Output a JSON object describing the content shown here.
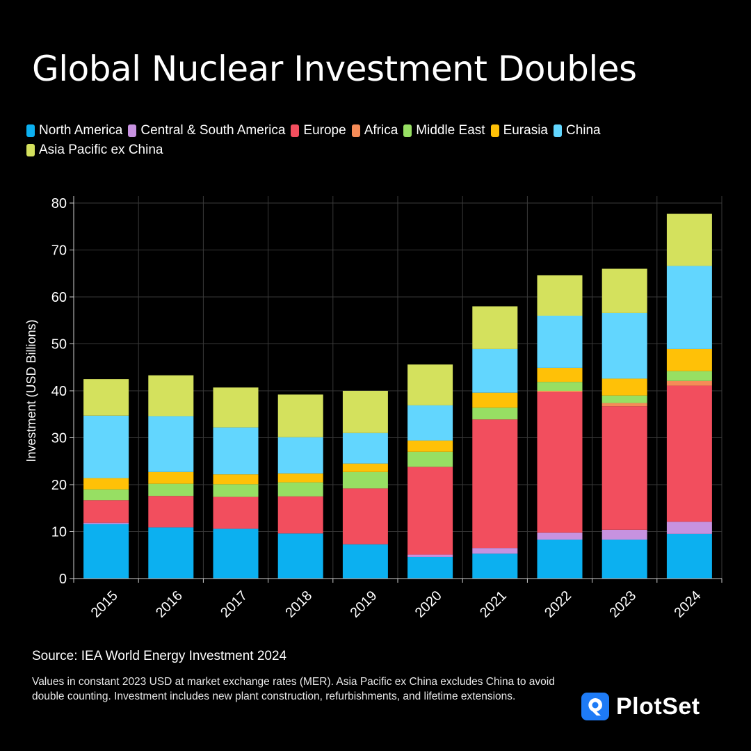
{
  "title": "Global Nuclear Investment Doubles",
  "source": "Source: IEA World Energy Investment 2024",
  "note": "Values in constant 2023 USD at market exchange rates (MER). Asia Pacific ex China excludes China to avoid double counting. Investment includes new plant construction, refurbishments, and lifetime extensions.",
  "brand": {
    "name": "PlotSet",
    "color": "#1e7bf6",
    "icon": "plotset-logo-icon"
  },
  "chart_data": {
    "type": "bar",
    "stacked": true,
    "title": "Global Nuclear Investment Doubles",
    "xlabel": "",
    "ylabel": "Investment (USD Billions)",
    "ylim": [
      0,
      80
    ],
    "yticks": [
      0,
      10,
      20,
      30,
      40,
      50,
      60,
      70,
      80
    ],
    "grid": true,
    "legend_position": "top-left",
    "categories": [
      "2015",
      "2016",
      "2017",
      "2018",
      "2019",
      "2020",
      "2021",
      "2022",
      "2023",
      "2024"
    ],
    "series": [
      {
        "name": "North America",
        "color": "#0cb0f0",
        "values": [
          11.6,
          10.9,
          10.6,
          9.6,
          7.3,
          4.6,
          5.3,
          8.3,
          8.3,
          9.5
        ]
      },
      {
        "name": "Central & South America",
        "color": "#c792e0",
        "values": [
          0.3,
          0.0,
          0.0,
          0.0,
          0.0,
          0.5,
          1.2,
          1.5,
          2.1,
          2.6
        ]
      },
      {
        "name": "Europe",
        "color": "#f24e5e",
        "values": [
          4.8,
          6.7,
          6.8,
          7.9,
          11.9,
          18.7,
          27.4,
          29.9,
          26.3,
          29.0
        ]
      },
      {
        "name": "Africa",
        "color": "#f58b57",
        "values": [
          0.0,
          0.0,
          0.0,
          0.0,
          0.0,
          0.0,
          0.0,
          0.3,
          0.7,
          1.0
        ]
      },
      {
        "name": "Middle East",
        "color": "#97df63",
        "values": [
          2.3,
          2.6,
          2.7,
          3.0,
          3.5,
          3.2,
          2.5,
          1.9,
          1.6,
          2.1
        ]
      },
      {
        "name": "Eurasia",
        "color": "#ffc107",
        "values": [
          2.4,
          2.5,
          2.1,
          1.9,
          1.8,
          2.4,
          3.2,
          3.0,
          3.6,
          4.7
        ]
      },
      {
        "name": "China",
        "color": "#62d6fe",
        "values": [
          13.3,
          11.9,
          10.0,
          7.7,
          6.5,
          7.5,
          9.3,
          11.1,
          14.0,
          17.7
        ]
      },
      {
        "name": "Asia Pacific ex China",
        "color": "#d4e15d",
        "values": [
          7.8,
          8.7,
          8.5,
          9.1,
          9.0,
          8.7,
          9.1,
          8.6,
          9.4,
          11.1
        ]
      }
    ]
  }
}
